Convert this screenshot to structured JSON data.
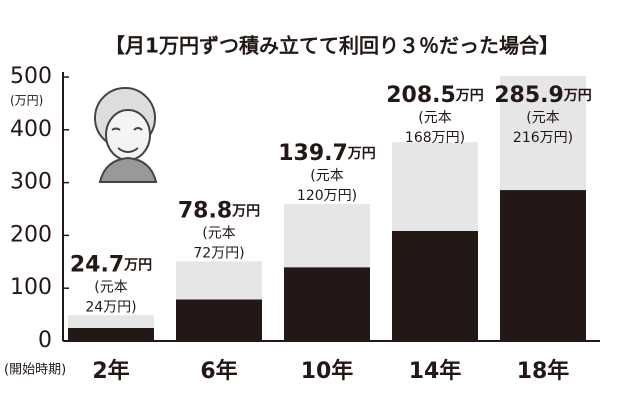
{
  "chart_data": {
    "type": "stacked_bar",
    "title": "【月1万円ずつ積み立てて利回り３％だった場合】",
    "y_unit": "(万円)",
    "x_label": "(開始時期)",
    "categories": [
      "2年",
      "6年",
      "10年",
      "14年",
      "18年"
    ],
    "value_unit": "万円",
    "series": [
      {
        "color": "#231815",
        "values": [
          24.7,
          78.8,
          139.7,
          208.5,
          285.9
        ]
      },
      {
        "color": "#e6e6e6",
        "values": [
          24,
          72,
          120,
          168,
          216
        ],
        "value_labels": [
          [
            "(元本",
            "24万円)"
          ],
          [
            "(元本",
            "72万円)"
          ],
          [
            "(元本",
            "120万円)"
          ],
          [
            "(元本",
            "168万円)"
          ],
          [
            "(元本",
            "216万円)"
          ]
        ]
      }
    ],
    "ylim": [
      0,
      500
    ],
    "yticks": [
      0,
      100,
      200,
      300,
      400,
      500
    ]
  }
}
